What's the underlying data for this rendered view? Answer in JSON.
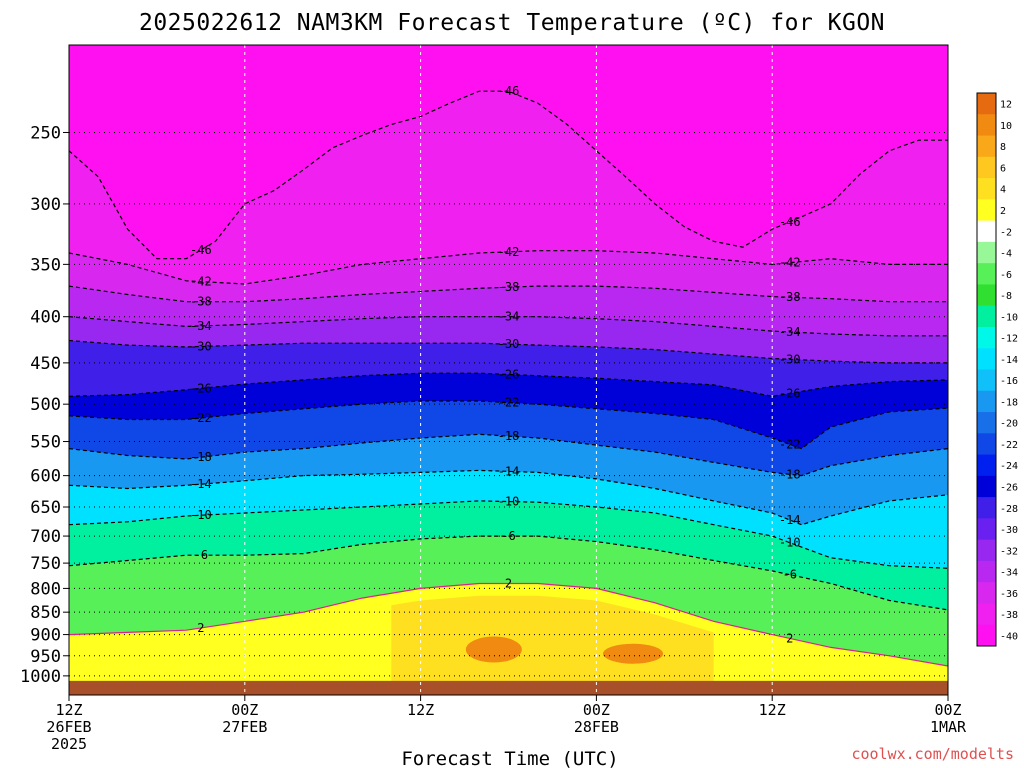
{
  "chart_data": {
    "type": "heatmap",
    "title": "2025022612 NAM3KM Forecast Temperature (ºC) for KGON",
    "xlabel": "Forecast Time (UTC)",
    "ylabel": "",
    "credit": "coolwx.com/modelts",
    "y_axis": {
      "scale": "log-pressure",
      "range_hpa": [
        1050,
        200
      ],
      "ticks": [
        250,
        300,
        350,
        400,
        450,
        500,
        550,
        600,
        650,
        700,
        750,
        800,
        850,
        900,
        950,
        1000
      ],
      "tick_labels": [
        "250",
        "300",
        "350",
        "400",
        "450",
        "500",
        "550",
        "600",
        "650",
        "700",
        "750",
        "800",
        "850",
        "900",
        "950",
        "1000"
      ]
    },
    "x_axis": {
      "range_hours": [
        0,
        60
      ],
      "ticks": [
        {
          "hour": 0,
          "lines": [
            "12Z",
            "26FEB",
            "2025"
          ]
        },
        {
          "hour": 12,
          "lines": [
            "00Z",
            "27FEB"
          ]
        },
        {
          "hour": 24,
          "lines": [
            "12Z"
          ]
        },
        {
          "hour": 36,
          "lines": [
            "00Z",
            "28FEB"
          ]
        },
        {
          "hour": 48,
          "lines": [
            "12Z"
          ]
        },
        {
          "hour": 60,
          "lines": [
            "00Z",
            "1MAR"
          ]
        }
      ]
    },
    "grid": true,
    "legend": "colorbar-right",
    "colorbar": {
      "levels": [
        "12",
        "10",
        "8",
        "6",
        "4",
        "2",
        "-2",
        "-4",
        "-6",
        "-8",
        "-10",
        "-12",
        "-14",
        "-16",
        "-18",
        "-20",
        "-22",
        "-24",
        "-26",
        "-28",
        "-30",
        "-32",
        "-34",
        "-36",
        "-38",
        "-40"
      ],
      "colors": [
        "#e56a10",
        "#f08a10",
        "#f8a818",
        "#ffc820",
        "#ffe020",
        "#ffff20",
        "#ffffff",
        "#98f898",
        "#58f058",
        "#30e030",
        "#00f0a0",
        "#00f8e8",
        "#00e0ff",
        "#10c0f8",
        "#1898f0",
        "#1870e8",
        "#1048e8",
        "#0020f0",
        "#0000d8",
        "#4020e8",
        "#6a20f0",
        "#9828f0",
        "#b828f0",
        "#d828f0",
        "#f020f0",
        "#ff10f0"
      ]
    },
    "ground_color": "#a8502a",
    "freezing_line_color": "#e0208a",
    "series": [
      {
        "time_hours": [
          0,
          2,
          4,
          6,
          8,
          10,
          12,
          14,
          16,
          18,
          20,
          22,
          24,
          26,
          28,
          30,
          32,
          34,
          36,
          38,
          40,
          42,
          44,
          46,
          48,
          50,
          52,
          54,
          56,
          58,
          60
        ],
        "values": [
          -11,
          -10,
          -12,
          -13,
          -13,
          -12,
          -11,
          -10,
          -9,
          -9,
          -8,
          -8,
          -7,
          -7,
          -7,
          -7,
          -7,
          -8,
          -8,
          -9,
          -10,
          -11,
          -12,
          -13,
          -15,
          -17,
          -16,
          -11,
          -10,
          -10,
          -10
        ],
        "name": "",
        "pressure_hpa": 700
      }
    ],
    "isotherms": [
      {
        "value": "-46",
        "time_hours": [
          0,
          2,
          4,
          6,
          8,
          10,
          12,
          14,
          16,
          18,
          20,
          22,
          24,
          26,
          28,
          30,
          32,
          34,
          36,
          38,
          40,
          42,
          44,
          46,
          48,
          50,
          52,
          54,
          56,
          58,
          60
        ],
        "pressure_hpa": [
          262,
          280,
          320,
          345,
          345,
          330,
          300,
          290,
          275,
          260,
          252,
          245,
          240,
          232,
          225,
          225,
          232,
          245,
          262,
          280,
          300,
          318,
          330,
          335,
          320,
          310,
          300,
          278,
          262,
          255,
          255
        ]
      },
      {
        "value": "-42",
        "time_hours": [
          0,
          4,
          8,
          12,
          16,
          20,
          24,
          28,
          32,
          36,
          40,
          44,
          48,
          52,
          56,
          60
        ],
        "pressure_hpa": [
          340,
          350,
          365,
          368,
          360,
          350,
          345,
          340,
          338,
          338,
          340,
          345,
          350,
          345,
          350,
          350
        ]
      },
      {
        "value": "-38",
        "time_hours": [
          0,
          4,
          8,
          12,
          16,
          20,
          24,
          28,
          32,
          36,
          40,
          44,
          48,
          52,
          56,
          60
        ],
        "pressure_hpa": [
          370,
          378,
          385,
          385,
          382,
          378,
          375,
          372,
          370,
          370,
          372,
          376,
          380,
          382,
          385,
          385
        ]
      },
      {
        "value": "-34",
        "time_hours": [
          0,
          4,
          8,
          12,
          16,
          20,
          24,
          28,
          32,
          36,
          40,
          44,
          48,
          52,
          56,
          60
        ],
        "pressure_hpa": [
          400,
          405,
          410,
          408,
          405,
          402,
          400,
          400,
          400,
          402,
          405,
          410,
          415,
          418,
          420,
          420
        ]
      },
      {
        "value": "-30",
        "time_hours": [
          0,
          4,
          8,
          12,
          16,
          20,
          24,
          28,
          32,
          36,
          40,
          44,
          48,
          52,
          56,
          60
        ],
        "pressure_hpa": [
          425,
          430,
          432,
          430,
          428,
          428,
          428,
          428,
          430,
          432,
          435,
          440,
          445,
          448,
          450,
          450
        ]
      },
      {
        "value": "-26",
        "time_hours": [
          0,
          4,
          8,
          12,
          16,
          20,
          24,
          28,
          32,
          36,
          40,
          44,
          48,
          52,
          56,
          60
        ],
        "pressure_hpa": [
          490,
          488,
          482,
          475,
          470,
          465,
          462,
          462,
          465,
          468,
          472,
          476,
          490,
          478,
          472,
          470
        ]
      },
      {
        "value": "-22",
        "time_hours": [
          0,
          4,
          8,
          12,
          16,
          20,
          24,
          28,
          32,
          36,
          40,
          44,
          48,
          50,
          52,
          56,
          60
        ],
        "pressure_hpa": [
          515,
          520,
          520,
          512,
          506,
          500,
          496,
          496,
          500,
          506,
          512,
          520,
          545,
          560,
          530,
          510,
          505
        ]
      },
      {
        "value": "-18",
        "time_hours": [
          0,
          4,
          8,
          12,
          16,
          20,
          24,
          28,
          32,
          36,
          40,
          44,
          48,
          50,
          52,
          56,
          60
        ],
        "pressure_hpa": [
          560,
          570,
          575,
          565,
          560,
          552,
          545,
          540,
          545,
          555,
          565,
          580,
          595,
          600,
          585,
          570,
          560
        ]
      },
      {
        "value": "-14",
        "time_hours": [
          0,
          4,
          8,
          12,
          16,
          20,
          24,
          28,
          32,
          36,
          40,
          44,
          48,
          50,
          52,
          56,
          60
        ],
        "pressure_hpa": [
          615,
          620,
          615,
          608,
          600,
          598,
          595,
          592,
          595,
          605,
          620,
          640,
          660,
          680,
          665,
          640,
          630
        ]
      },
      {
        "value": "-10",
        "time_hours": [
          0,
          4,
          8,
          12,
          16,
          20,
          24,
          28,
          32,
          36,
          40,
          44,
          48,
          50,
          52,
          56,
          60
        ],
        "pressure_hpa": [
          680,
          675,
          665,
          660,
          655,
          650,
          645,
          640,
          642,
          650,
          660,
          680,
          700,
          720,
          740,
          755,
          760
        ]
      },
      {
        "value": "-6",
        "time_hours": [
          0,
          4,
          8,
          12,
          16,
          20,
          24,
          28,
          32,
          36,
          40,
          44,
          48,
          52,
          56,
          60
        ],
        "pressure_hpa": [
          755,
          745,
          735,
          735,
          732,
          715,
          705,
          700,
          700,
          710,
          725,
          745,
          765,
          790,
          825,
          845
        ]
      },
      {
        "value": "2",
        "time_hours": [
          0,
          4,
          8,
          12,
          16,
          20,
          24,
          28,
          32,
          36,
          40,
          44,
          48,
          52,
          56,
          60
        ],
        "pressure_hpa": [
          900,
          895,
          890,
          870,
          850,
          820,
          800,
          790,
          790,
          800,
          830,
          870,
          900,
          930,
          950,
          975
        ]
      }
    ]
  }
}
